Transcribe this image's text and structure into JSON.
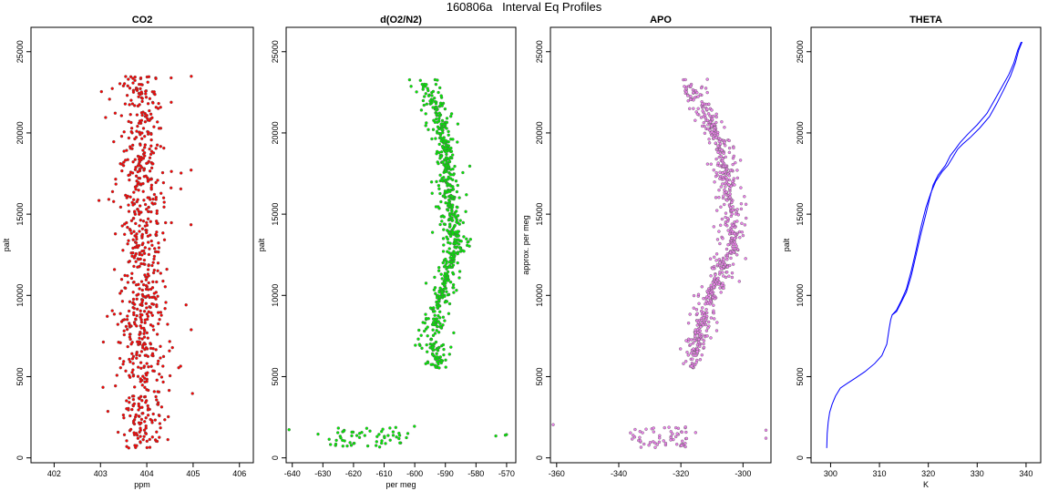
{
  "figure": {
    "title": "160806a   Interval Eq Profiles"
  },
  "chart_data": [
    {
      "type": "scatter",
      "title": "CO2",
      "xlabel": "ppm",
      "ylabel": "palt",
      "xlim": [
        401.5,
        406.3
      ],
      "ylim": [
        -300,
        26500
      ],
      "xticks": [
        402,
        403,
        404,
        405,
        406
      ],
      "yticks": [
        0,
        5000,
        10000,
        15000,
        20000,
        25000
      ],
      "color": "#ff0000",
      "seed": 11,
      "y_range": [
        600,
        23500
      ],
      "center": 403.9,
      "spread": 0.55,
      "outliers": 0.25,
      "grid": false
    },
    {
      "type": "scatter",
      "title": "d(O2/N2)",
      "xlabel": "per meg",
      "ylabel": "palt",
      "xlim": [
        -642,
        -567
      ],
      "ylim": [
        -300,
        26500
      ],
      "xticks": [
        -640,
        -630,
        -620,
        -610,
        -600,
        -590,
        -580,
        -570
      ],
      "yticks": [
        0,
        5000,
        10000,
        15000,
        20000,
        25000
      ],
      "color": "#00ee00",
      "seed": 23,
      "profile": [
        [
          5500,
          -592
        ],
        [
          7000,
          -594
        ],
        [
          9000,
          -593
        ],
        [
          11000,
          -590
        ],
        [
          13000,
          -586
        ],
        [
          15000,
          -588
        ],
        [
          17000,
          -589
        ],
        [
          19000,
          -590
        ],
        [
          21000,
          -592
        ],
        [
          23200,
          -597
        ]
      ],
      "spread": 5,
      "low_cluster": {
        "y": [
          600,
          1900
        ],
        "x": [
          -628,
          -602
        ]
      },
      "grid": false
    },
    {
      "type": "scatter",
      "title": "APO",
      "xlabel": "",
      "ylabel": "approx. per meg",
      "xlim": [
        -362,
        -291
      ],
      "ylim": [
        -300,
        26500
      ],
      "xticks": [
        -360,
        -340,
        -320,
        -300
      ],
      "yticks": [
        0,
        5000,
        10000,
        15000,
        20000,
        25000
      ],
      "color": "#ee82ee",
      "seed": 37,
      "profile": [
        [
          5500,
          -316
        ],
        [
          7000,
          -315
        ],
        [
          9000,
          -313
        ],
        [
          11000,
          -308
        ],
        [
          13000,
          -303
        ],
        [
          15000,
          -304
        ],
        [
          17000,
          -305
        ],
        [
          19000,
          -307
        ],
        [
          21000,
          -311
        ],
        [
          23200,
          -318
        ]
      ],
      "spread": 5,
      "low_cluster": {
        "y": [
          600,
          1900
        ],
        "x": [
          -336,
          -318
        ]
      },
      "grid": false
    },
    {
      "type": "line",
      "title": "THETA",
      "xlabel": "K",
      "ylabel": "palt",
      "xlim": [
        296,
        343
      ],
      "ylim": [
        -300,
        26500
      ],
      "xticks": [
        300,
        310,
        320,
        330,
        340
      ],
      "yticks": [
        0,
        5000,
        10000,
        15000,
        20000,
        25000
      ],
      "color": "#0000ff",
      "series": [
        {
          "x": [
            299.2,
            299.3,
            299.5,
            299.8,
            300.3,
            301.0,
            302.0,
            303.5,
            305.0,
            307.0,
            309.0,
            310.5,
            311.5,
            312.0,
            312.3,
            312.6,
            313.5,
            314.5,
            315.5,
            316.5,
            317.5,
            318.5,
            319.5,
            320.3,
            321.0,
            322.0,
            323.5,
            324.5,
            325.5,
            326.5,
            328.0,
            330.0,
            332.0,
            333.5,
            335.0,
            336.5,
            337.5,
            338.3,
            339.0
          ],
          "y": [
            600,
            1500,
            2200,
            2800,
            3300,
            3800,
            4300,
            4600,
            4900,
            5300,
            5800,
            6300,
            7000,
            8000,
            8500,
            8800,
            9000,
            9600,
            10200,
            11200,
            12500,
            13800,
            15000,
            16000,
            16800,
            17400,
            18000,
            18600,
            19000,
            19400,
            19900,
            20500,
            21200,
            22000,
            22800,
            23600,
            24300,
            25100,
            25600
          ]
        },
        {
          "x": [
            312.6,
            313.5,
            314.5,
            315.5,
            316.5,
            317.5,
            318.5,
            319.5,
            320.5,
            321.5,
            322.8,
            324.0,
            325.0,
            326.0,
            327.0,
            328.5,
            330.5,
            332.5,
            334.0,
            335.5,
            336.8,
            337.8,
            338.5,
            339.2
          ],
          "y": [
            8800,
            9100,
            9700,
            10400,
            11500,
            12800,
            14200,
            15400,
            16300,
            17000,
            17600,
            18000,
            18500,
            19000,
            19300,
            19700,
            20300,
            21000,
            21800,
            22700,
            23500,
            24300,
            25100,
            25600
          ]
        }
      ],
      "grid": false
    }
  ]
}
